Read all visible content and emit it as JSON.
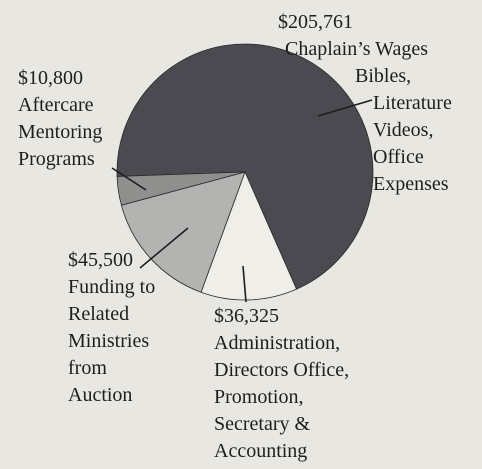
{
  "chart_data": {
    "type": "pie",
    "categories": [
      "Chaplain’s Wages\nBibles,\nLiterature\nVideos,\nOffice\nExpenses",
      "Administration,\nDirectors Office,\nPromotion,\nSecretary &\nAccounting",
      "Funding to\nRelated\nMinistries\nfrom\nAuction",
      "Aftercare\nMentoring\nPrograms"
    ],
    "values": [
      205761,
      36325,
      45500,
      10800
    ],
    "value_labels": [
      "$205,761",
      "$36,325",
      "$45,500",
      "$10,800"
    ],
    "colors": [
      "#4b4a50",
      "#efeee9",
      "#b3b3b1",
      "#8f8f8e"
    ]
  }
}
